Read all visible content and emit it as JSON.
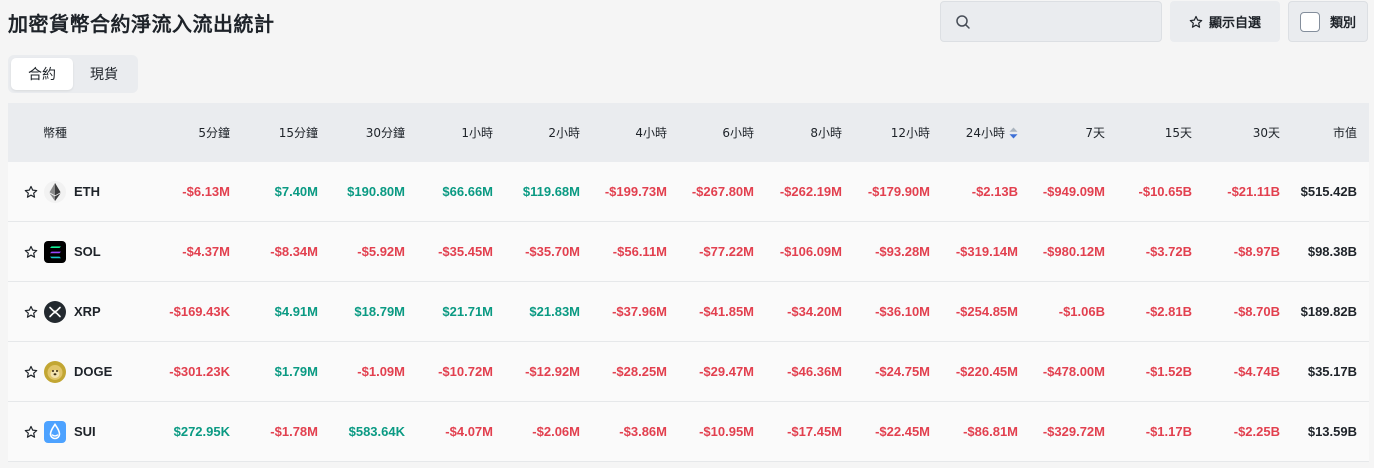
{
  "header": {
    "title": "加密貨幣合約淨流入流出統計",
    "search_placeholder": "",
    "favorites_label": "顯示自選",
    "category_label": "類別"
  },
  "tabs": [
    {
      "label": "合約",
      "active": true
    },
    {
      "label": "現貨",
      "active": false
    }
  ],
  "table": {
    "columns": [
      "幣種",
      "5分鐘",
      "15分鐘",
      "30分鐘",
      "1小時",
      "2小時",
      "4小時",
      "6小時",
      "8小時",
      "12小時",
      "24小時",
      "7天",
      "15天",
      "30天",
      "市值"
    ],
    "sorted_column": "24小時",
    "rows": [
      {
        "symbol": "ETH",
        "logo": "eth-logo",
        "values": [
          "-$6.13M",
          "$7.40M",
          "$190.80M",
          "$66.66M",
          "$119.68M",
          "-$199.73M",
          "-$267.80M",
          "-$262.19M",
          "-$179.90M",
          "-$2.13B",
          "-$949.09M",
          "-$10.65B",
          "-$21.11B"
        ],
        "market_cap": "$515.42B"
      },
      {
        "symbol": "SOL",
        "logo": "sol-logo",
        "values": [
          "-$4.37M",
          "-$8.34M",
          "-$5.92M",
          "-$35.45M",
          "-$35.70M",
          "-$56.11M",
          "-$77.22M",
          "-$106.09M",
          "-$93.28M",
          "-$319.14M",
          "-$980.12M",
          "-$3.72B",
          "-$8.97B"
        ],
        "market_cap": "$98.38B"
      },
      {
        "symbol": "XRP",
        "logo": "xrp-logo",
        "values": [
          "-$169.43K",
          "$4.91M",
          "$18.79M",
          "$21.71M",
          "$21.83M",
          "-$37.96M",
          "-$41.85M",
          "-$34.20M",
          "-$36.10M",
          "-$254.85M",
          "-$1.06B",
          "-$2.81B",
          "-$8.70B"
        ],
        "market_cap": "$189.82B"
      },
      {
        "symbol": "DOGE",
        "logo": "doge-logo",
        "values": [
          "-$301.23K",
          "$1.79M",
          "-$1.09M",
          "-$10.72M",
          "-$12.92M",
          "-$28.25M",
          "-$29.47M",
          "-$46.36M",
          "-$24.75M",
          "-$220.45M",
          "-$478.00M",
          "-$1.52B",
          "-$4.74B"
        ],
        "market_cap": "$35.17B"
      },
      {
        "symbol": "SUI",
        "logo": "sui-logo",
        "values": [
          "$272.95K",
          "-$1.78M",
          "$583.64K",
          "-$4.07M",
          "-$2.06M",
          "-$3.86M",
          "-$10.95M",
          "-$17.45M",
          "-$22.45M",
          "-$86.81M",
          "-$329.72M",
          "-$1.17B",
          "-$2.25B"
        ],
        "market_cap": "$13.59B"
      }
    ]
  },
  "colors": {
    "positive": "#0a9a83",
    "negative": "#e2404f",
    "sort_up": "#aab4be",
    "sort_down": "#3c6fd6"
  }
}
